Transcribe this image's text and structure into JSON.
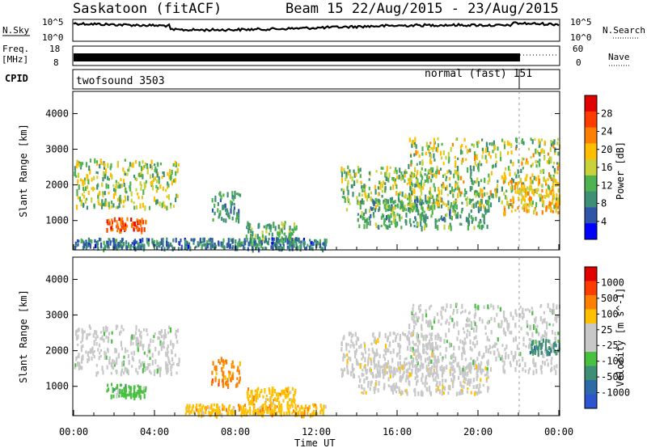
{
  "header": {
    "station": "Saskatoon (fitACF)",
    "beam_info": "Beam 15 22/Aug/2015 - 23/Aug/2015"
  },
  "top_panels": {
    "nsky_label": "N.Sky",
    "nsky_ticks": [
      "10^5",
      "10^0"
    ],
    "nsearch_label": "N.Search",
    "nsearch_ticks": [
      "10^5",
      "10^0"
    ],
    "freq_label_1": "Freq.",
    "freq_label_2": "[MHz]",
    "freq_ticks": [
      "18",
      "8"
    ],
    "nave_label": "Nave",
    "nave_ticks": [
      "60",
      "0"
    ],
    "cpid_label": "CPID",
    "cpid_modes": [
      {
        "name": "twofsound 3503",
        "start_hour": 0
      },
      {
        "name": "normal (fast) 151",
        "start_hour": 22
      }
    ]
  },
  "colors": {
    "power_scale": [
      "#0000ff",
      "#2e55a8",
      "#3f8f76",
      "#4fb44f",
      "#c9d23a",
      "#ffbf00",
      "#ff8000",
      "#ff3c00",
      "#e00000"
    ],
    "velocity_scale": [
      "#2e55d0",
      "#2e6aa8",
      "#3f8f76",
      "#48c040",
      "#c8c8c8",
      "#c8c8c8",
      "#ffc000",
      "#ff8000",
      "#ff3c00",
      "#e00000"
    ]
  },
  "chart_data": [
    {
      "type": "heatmap",
      "title": "Power",
      "xlabel": "Time UT",
      "ylabel": "Slant Range [km]",
      "xlim": [
        0,
        24
      ],
      "ylim": [
        200,
        4600
      ],
      "xticks": [
        "00:00",
        "04:00",
        "08:00",
        "12:00",
        "16:00",
        "20:00",
        "00:00"
      ],
      "xtick_hours": [
        0,
        4,
        8,
        12,
        16,
        20,
        24
      ],
      "yticks": [
        1000,
        2000,
        3000,
        4000
      ],
      "colorbar": {
        "label": "Power [dB]",
        "ticks": [
          "28",
          "24",
          "20",
          "16",
          "12",
          "8",
          "4"
        ],
        "range": [
          0,
          30
        ]
      },
      "scatter_bands": [
        {
          "t0": 0.0,
          "t1": 5.2,
          "r0": 1350,
          "r1": 2700,
          "value": 14,
          "spread": 6
        },
        {
          "t0": 1.6,
          "t1": 3.6,
          "r0": 700,
          "r1": 1050,
          "value": 24,
          "spread": 4
        },
        {
          "t0": 6.8,
          "t1": 8.2,
          "r0": 1000,
          "r1": 1800,
          "value": 9,
          "spread": 3
        },
        {
          "t0": 8.5,
          "t1": 11.0,
          "r0": 450,
          "r1": 950,
          "value": 11,
          "spread": 4
        },
        {
          "t0": 0.0,
          "t1": 12.5,
          "r0": 200,
          "r1": 480,
          "value": 7,
          "spread": 4
        },
        {
          "t0": 13.2,
          "t1": 18.0,
          "r0": 1300,
          "r1": 2500,
          "value": 13,
          "spread": 6
        },
        {
          "t0": 14.0,
          "t1": 20.5,
          "r0": 800,
          "r1": 1600,
          "value": 10,
          "spread": 4
        },
        {
          "t0": 16.5,
          "t1": 24.0,
          "r0": 1400,
          "r1": 3300,
          "value": 14,
          "spread": 7
        },
        {
          "t0": 21.2,
          "t1": 24.0,
          "r0": 1200,
          "r1": 2200,
          "value": 19,
          "spread": 4
        }
      ]
    },
    {
      "type": "heatmap",
      "title": "Velocity",
      "xlabel": "Time UT",
      "ylabel": "Slant Range [km]",
      "xlim": [
        0,
        24
      ],
      "ylim": [
        200,
        4600
      ],
      "xticks": [
        "00:00",
        "04:00",
        "08:00",
        "12:00",
        "16:00",
        "20:00",
        "00:00"
      ],
      "xtick_hours": [
        0,
        4,
        8,
        12,
        16,
        20,
        24
      ],
      "yticks": [
        1000,
        2000,
        3000,
        4000
      ],
      "colorbar": {
        "label": "Velocity [m s^-1]",
        "ticks": [
          "1000",
          "500",
          "100",
          "25",
          "-25",
          "-100",
          "-500",
          "-1000"
        ]
      },
      "scatter_bands": [
        {
          "t0": 0.0,
          "t1": 5.2,
          "r0": 1350,
          "r1": 2700,
          "cls": 4
        },
        {
          "t0": 1.6,
          "t1": 3.6,
          "r0": 700,
          "r1": 1050,
          "cls": 3
        },
        {
          "t0": 6.8,
          "t1": 8.2,
          "r0": 1000,
          "r1": 1800,
          "cls": 7
        },
        {
          "t0": 8.5,
          "t1": 11.0,
          "r0": 450,
          "r1": 950,
          "cls": 6
        },
        {
          "t0": 5.5,
          "t1": 12.5,
          "r0": 200,
          "r1": 480,
          "cls": 6
        },
        {
          "t0": 13.2,
          "t1": 18.0,
          "r0": 1300,
          "r1": 2500,
          "cls": 5
        },
        {
          "t0": 14.0,
          "t1": 20.5,
          "r0": 800,
          "r1": 1600,
          "cls": 5
        },
        {
          "t0": 16.5,
          "t1": 24.0,
          "r0": 1400,
          "r1": 3300,
          "cls": 4
        },
        {
          "t0": 22.5,
          "t1": 24.0,
          "r0": 1900,
          "r1": 2300,
          "cls": 2
        }
      ]
    }
  ]
}
